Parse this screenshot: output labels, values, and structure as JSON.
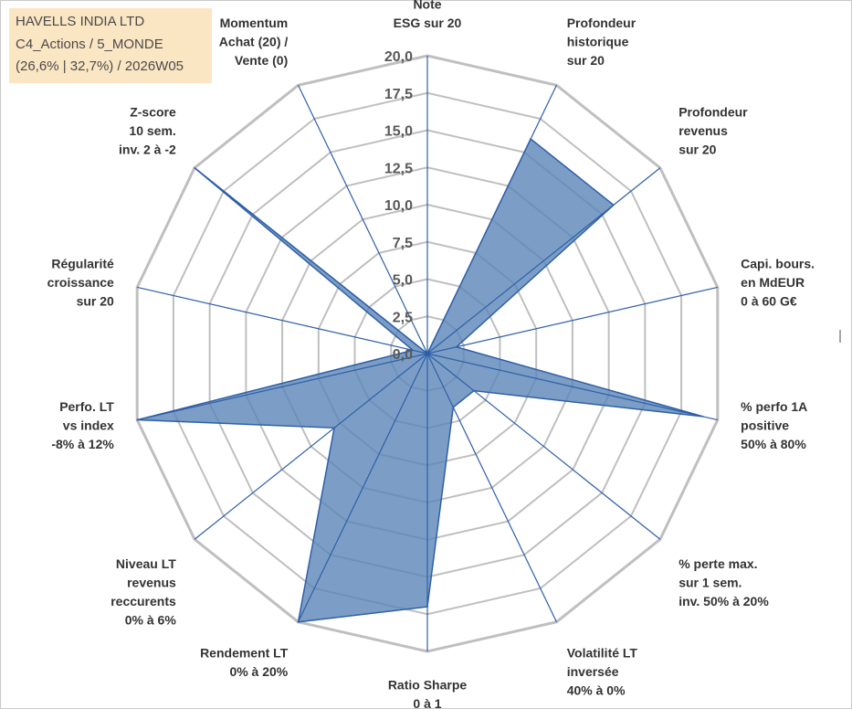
{
  "header": {
    "line1": "HAVELLS INDIA LTD",
    "line2": "C4_Actions / 5_MONDE",
    "line3": "(26,6% | 32,7%) / 2026W05"
  },
  "colors": {
    "fill": "#5b86b8",
    "spokes": "#2e5fa8",
    "grid": "#bfbfbf",
    "title_bg": "#fbe6c4"
  },
  "chart_data": {
    "type": "radar",
    "title": "HAVELLS INDIA LTD",
    "rlim": [
      0,
      20
    ],
    "tick_step": 2.5,
    "tick_labels": [
      "0,0",
      "2,5",
      "5,0",
      "7,5",
      "10,0",
      "12,5",
      "15,0",
      "17,5",
      "20,0"
    ],
    "axes": [
      {
        "lines": [
          "Note",
          "ESG sur 20"
        ],
        "value": 0
      },
      {
        "lines": [
          "Profondeur",
          "historique",
          "sur 20"
        ],
        "value": 16
      },
      {
        "lines": [
          "Profondeur",
          "revenus",
          "sur 20"
        ],
        "value": 16
      },
      {
        "lines": [
          "Capi. bours.",
          "en MdEUR",
          "0 à 60 G€"
        ],
        "value": 2
      },
      {
        "lines": [
          "% perfo 1A",
          "positive",
          "50% à 80%"
        ],
        "value": 19
      },
      {
        "lines": [
          "% perte max.",
          "sur 1 sem.",
          "inv. 50% à 20%"
        ],
        "value": 4
      },
      {
        "lines": [
          "Volatilité LT",
          "inversée",
          "40% à 0%"
        ],
        "value": 4
      },
      {
        "lines": [
          "Ratio Sharpe",
          "0 à 1"
        ],
        "value": 17
      },
      {
        "lines": [
          "Rendement LT",
          "0% à 20%"
        ],
        "value": 20
      },
      {
        "lines": [
          "Niveau LT",
          "revenus",
          "reccurents",
          "0% à 6%"
        ],
        "value": 8
      },
      {
        "lines": [
          "Perfo. LT",
          "vs index",
          "-8% à 12%"
        ],
        "value": 20
      },
      {
        "lines": [
          "Régularité",
          "croissance",
          "sur 20"
        ],
        "value": 1
      },
      {
        "lines": [
          "Z-score",
          "10 sem.",
          "inv. 2 à -2"
        ],
        "value": 20
      },
      {
        "lines": [
          "Momentum",
          "Achat (20) /",
          "Vente (0)"
        ],
        "value": 0
      }
    ]
  }
}
